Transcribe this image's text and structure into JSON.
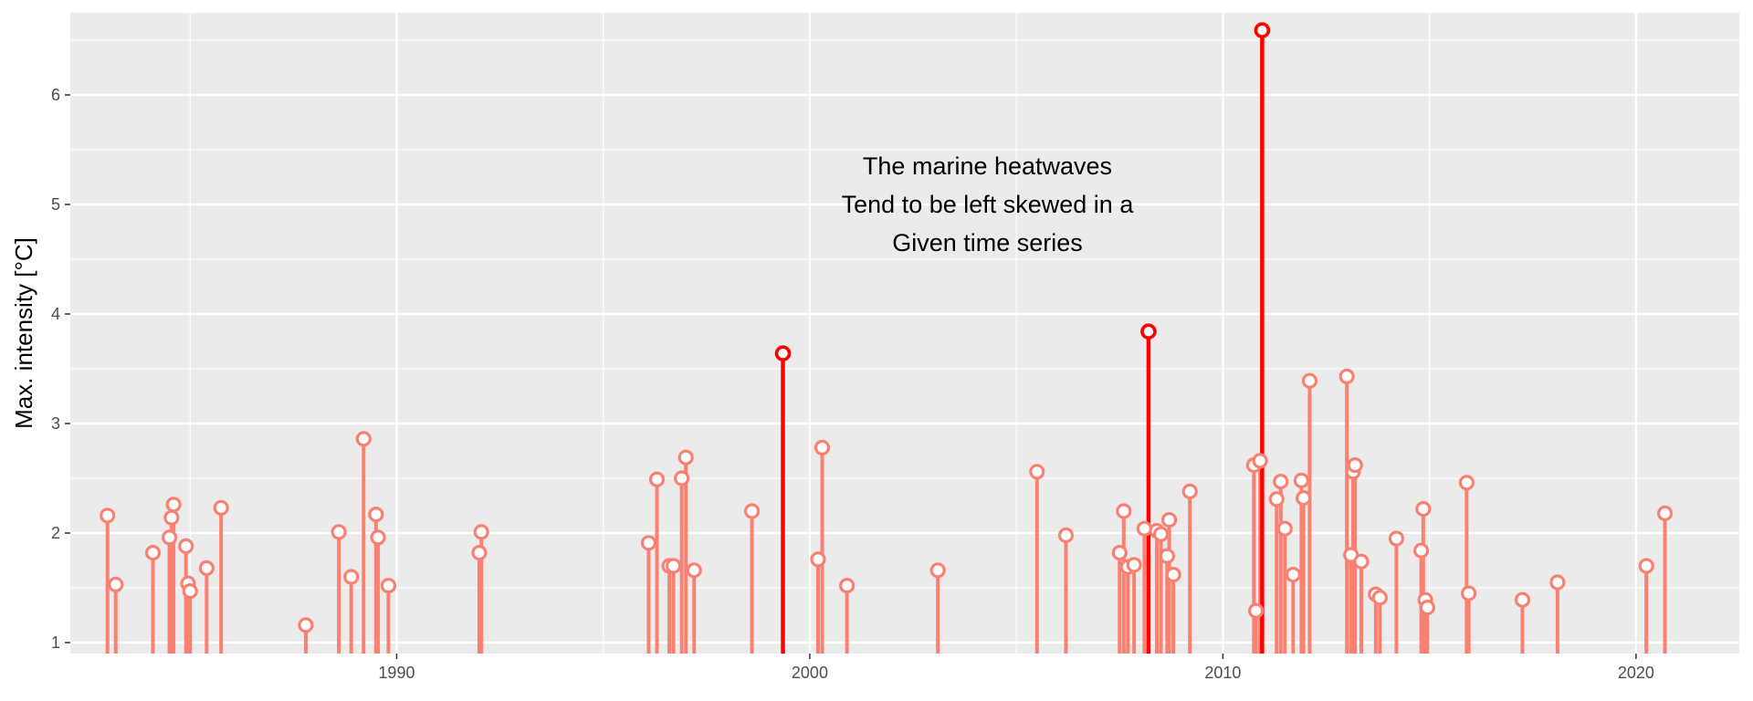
{
  "chart_data": {
    "type": "lollipop",
    "title": "",
    "xlabel": "",
    "ylabel": "Max. intensity [°C]",
    "xlim": [
      1982.1,
      2022.5
    ],
    "ylim": [
      0.9,
      6.75
    ],
    "x_ticks": [
      1990,
      2000,
      2010,
      2020
    ],
    "x_tick_labels": [
      "1990",
      "2000",
      "2010",
      "2020"
    ],
    "y_ticks": [
      1,
      2,
      3,
      4,
      5,
      6
    ],
    "y_tick_labels": [
      "1",
      "2",
      "3",
      "4",
      "5",
      "6"
    ],
    "grid": true,
    "annotation": {
      "lines": [
        "The marine heatwaves",
        "Tend to be left skewed in a",
        "Given time series"
      ],
      "x": 2004.3,
      "y": 5.0
    },
    "colors": {
      "panel": "#ebebeb",
      "grid": "#ffffff",
      "normal": "#fa8072",
      "highlight": "#ff0000"
    },
    "series": [
      {
        "points": [
          {
            "x": 1983.0,
            "y": 2.16
          },
          {
            "x": 1983.2,
            "y": 1.53
          },
          {
            "x": 1984.1,
            "y": 1.82
          },
          {
            "x": 1984.5,
            "y": 1.96
          },
          {
            "x": 1984.55,
            "y": 2.14
          },
          {
            "x": 1984.6,
            "y": 2.26
          },
          {
            "x": 1984.9,
            "y": 1.88
          },
          {
            "x": 1984.95,
            "y": 1.54
          },
          {
            "x": 1985.0,
            "y": 1.47
          },
          {
            "x": 1985.4,
            "y": 1.68
          },
          {
            "x": 1985.75,
            "y": 2.23
          },
          {
            "x": 1987.8,
            "y": 1.16
          },
          {
            "x": 1988.6,
            "y": 2.01
          },
          {
            "x": 1988.9,
            "y": 1.6
          },
          {
            "x": 1989.2,
            "y": 2.86
          },
          {
            "x": 1989.5,
            "y": 2.17
          },
          {
            "x": 1989.55,
            "y": 1.96
          },
          {
            "x": 1989.8,
            "y": 1.52
          },
          {
            "x": 1992.0,
            "y": 1.82
          },
          {
            "x": 1992.05,
            "y": 2.01
          },
          {
            "x": 1996.1,
            "y": 1.91
          },
          {
            "x": 1996.3,
            "y": 2.49
          },
          {
            "x": 1996.6,
            "y": 1.7
          },
          {
            "x": 1996.7,
            "y": 1.7
          },
          {
            "x": 1996.9,
            "y": 2.5
          },
          {
            "x": 1997.0,
            "y": 2.69
          },
          {
            "x": 1997.2,
            "y": 1.66
          },
          {
            "x": 1998.6,
            "y": 2.2
          },
          {
            "x": 2000.2,
            "y": 1.76
          },
          {
            "x": 2000.3,
            "y": 2.78
          },
          {
            "x": 2000.9,
            "y": 1.52
          },
          {
            "x": 2003.1,
            "y": 1.66
          },
          {
            "x": 2005.5,
            "y": 2.56
          },
          {
            "x": 2006.2,
            "y": 1.98
          },
          {
            "x": 2007.5,
            "y": 1.82
          },
          {
            "x": 2007.6,
            "y": 2.2
          },
          {
            "x": 2007.7,
            "y": 1.69
          },
          {
            "x": 2007.85,
            "y": 1.71
          },
          {
            "x": 2008.1,
            "y": 2.04
          },
          {
            "x": 2008.4,
            "y": 2.02
          },
          {
            "x": 2008.5,
            "y": 1.99
          },
          {
            "x": 2008.65,
            "y": 1.79
          },
          {
            "x": 2008.7,
            "y": 2.12
          },
          {
            "x": 2008.8,
            "y": 1.62
          },
          {
            "x": 2009.2,
            "y": 2.38
          },
          {
            "x": 2010.75,
            "y": 2.62
          },
          {
            "x": 2010.8,
            "y": 1.29
          },
          {
            "x": 2010.9,
            "y": 2.66
          },
          {
            "x": 2011.3,
            "y": 2.31
          },
          {
            "x": 2011.4,
            "y": 2.47
          },
          {
            "x": 2011.5,
            "y": 2.04
          },
          {
            "x": 2011.7,
            "y": 1.62
          },
          {
            "x": 2011.9,
            "y": 2.48
          },
          {
            "x": 2011.95,
            "y": 2.32
          },
          {
            "x": 2012.1,
            "y": 3.39
          },
          {
            "x": 2013.0,
            "y": 3.43
          },
          {
            "x": 2013.1,
            "y": 1.8
          },
          {
            "x": 2013.15,
            "y": 2.56
          },
          {
            "x": 2013.2,
            "y": 2.62
          },
          {
            "x": 2013.35,
            "y": 1.74
          },
          {
            "x": 2013.7,
            "y": 1.44
          },
          {
            "x": 2013.8,
            "y": 1.41
          },
          {
            "x": 2014.2,
            "y": 1.95
          },
          {
            "x": 2014.8,
            "y": 1.84
          },
          {
            "x": 2014.85,
            "y": 2.22
          },
          {
            "x": 2014.9,
            "y": 1.39
          },
          {
            "x": 2014.95,
            "y": 1.32
          },
          {
            "x": 2015.9,
            "y": 2.46
          },
          {
            "x": 2015.95,
            "y": 1.45
          },
          {
            "x": 2017.25,
            "y": 1.39
          },
          {
            "x": 2018.1,
            "y": 1.55
          },
          {
            "x": 2020.25,
            "y": 1.7
          },
          {
            "x": 2020.7,
            "y": 2.18
          }
        ]
      },
      {
        "highlight": true,
        "points": [
          {
            "x": 1999.35,
            "y": 3.64
          },
          {
            "x": 2008.2,
            "y": 3.84
          },
          {
            "x": 2010.95,
            "y": 6.59
          }
        ]
      }
    ]
  }
}
